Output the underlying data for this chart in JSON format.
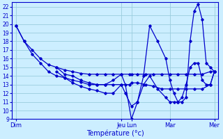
{
  "background_color": "#cceeff",
  "grid_color": "#99ccdd",
  "line_color": "#0000cc",
  "ylim": [
    9,
    22.5
  ],
  "yticks": [
    9,
    10,
    11,
    12,
    13,
    14,
    15,
    16,
    17,
    18,
    19,
    20,
    21,
    22
  ],
  "xlabel": "Température (°c)",
  "day_labels": [
    "Dim",
    "Jeu",
    "Lun",
    "Mar",
    "Mer"
  ],
  "xlim": [
    -2,
    100
  ],
  "day_positions": [
    0,
    52,
    57,
    76,
    98
  ],
  "series1_x": [
    0,
    4,
    8,
    12,
    16,
    20,
    24,
    28,
    32,
    36,
    40,
    44,
    48,
    52,
    56,
    57,
    60,
    64,
    68,
    72,
    76,
    80,
    84,
    88,
    92,
    96,
    98
  ],
  "series1_y": [
    19.8,
    18.0,
    17.0,
    16.0,
    15.3,
    15.0,
    14.7,
    14.5,
    14.3,
    14.2,
    14.2,
    14.2,
    14.2,
    14.2,
    14.2,
    14.2,
    14.2,
    14.2,
    14.2,
    14.2,
    14.2,
    14.2,
    14.2,
    14.2,
    14.2,
    14.5,
    14.5
  ],
  "series2_x": [
    0,
    4,
    8,
    12,
    16,
    20,
    24,
    28,
    32,
    36,
    40,
    44,
    48,
    52,
    56,
    57,
    60,
    64,
    68,
    72,
    76,
    80,
    84,
    88,
    92,
    96,
    98
  ],
  "series2_y": [
    19.8,
    18.0,
    16.5,
    15.5,
    14.5,
    14.0,
    13.8,
    13.5,
    13.3,
    13.0,
    13.0,
    13.0,
    13.0,
    13.0,
    13.0,
    13.2,
    13.2,
    13.0,
    12.8,
    12.5,
    12.5,
    12.5,
    12.5,
    12.5,
    12.5,
    13.0,
    14.5
  ],
  "series3_x": [
    20,
    24,
    28,
    32,
    36,
    40,
    44,
    48,
    52,
    54,
    57,
    60,
    63,
    66,
    70,
    74,
    76,
    78,
    80,
    82,
    84,
    86,
    88,
    90,
    92,
    94,
    96,
    98
  ],
  "series3_y": [
    15.0,
    14.2,
    14.0,
    13.5,
    13.2,
    13.0,
    13.0,
    13.5,
    14.2,
    13.0,
    9.0,
    11.0,
    14.0,
    19.8,
    18.0,
    16.0,
    13.5,
    12.0,
    11.0,
    11.0,
    11.5,
    18.0,
    21.5,
    22.3,
    20.5,
    15.5,
    15.0,
    14.5
  ],
  "series4_x": [
    20,
    24,
    28,
    32,
    36,
    40,
    44,
    48,
    52,
    54,
    57,
    60,
    63,
    66,
    70,
    74,
    76,
    78,
    80,
    82,
    84,
    86,
    88,
    90,
    92,
    94,
    96,
    98
  ],
  "series4_y": [
    14.5,
    13.8,
    13.2,
    12.8,
    12.5,
    12.3,
    12.0,
    12.0,
    13.0,
    12.0,
    10.5,
    11.0,
    13.0,
    14.0,
    12.5,
    11.5,
    11.0,
    11.0,
    11.0,
    11.5,
    13.0,
    15.0,
    15.5,
    15.5,
    13.5,
    13.0,
    13.0,
    14.5
  ]
}
